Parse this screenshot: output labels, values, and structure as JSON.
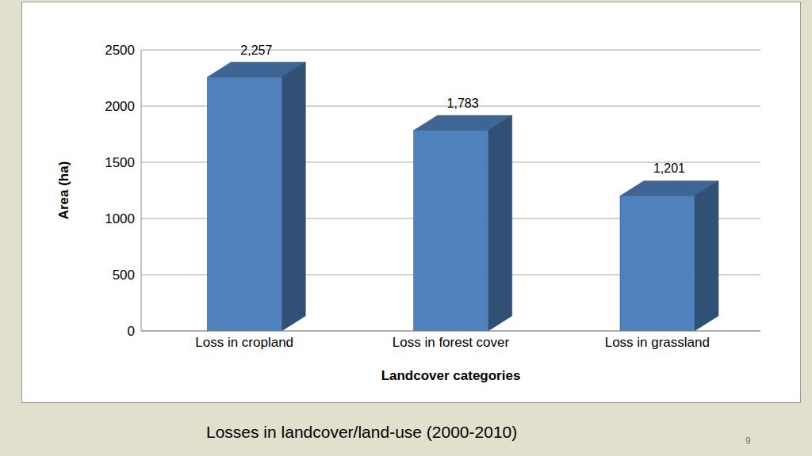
{
  "chart_data": {
    "type": "bar",
    "categories": [
      "Loss in cropland",
      "Loss in forest cover",
      "Loss in grassland"
    ],
    "values": [
      2257,
      1783,
      1201
    ],
    "value_labels": [
      "2,257",
      "1,783",
      "1,201"
    ],
    "data_labels": true,
    "color": "#4f81bd",
    "ylim": [
      0,
      2500
    ],
    "yticks": [
      0,
      500,
      1000,
      1500,
      2000,
      2500
    ],
    "grid": true,
    "x_label": "Landcover categories",
    "y_label": "Area (ha)"
  },
  "slide": {
    "caption": "Losses in landcover/land-use (2000-2010)",
    "page_number": 9
  }
}
